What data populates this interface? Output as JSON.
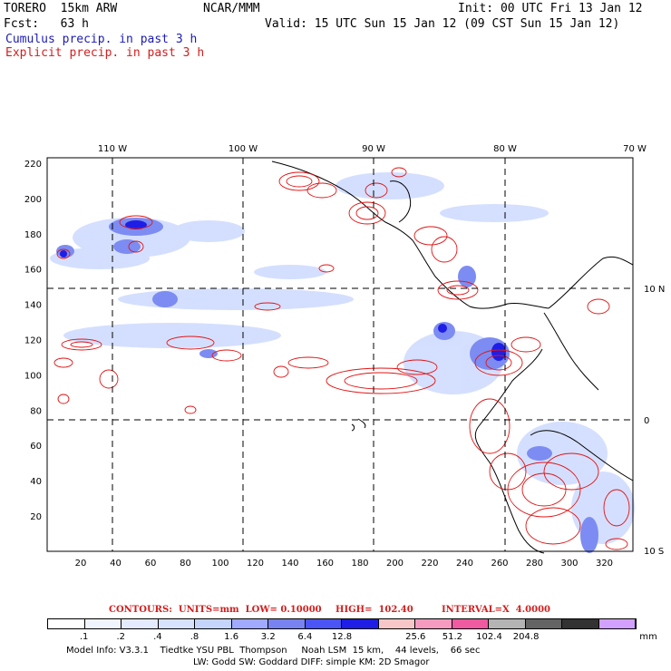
{
  "header": {
    "line1_left": "TORERO  15km ARW",
    "line1_mid": "NCAR/MMM",
    "line1_right": "Init: 00 UTC Fri 13 Jan 12",
    "line2_left": "Fcst:   63 h",
    "line2_right": "Valid: 15 UTC Sun 15 Jan 12 (09 CST Sun 15 Jan 12)",
    "cumulus_label": "Cumulus precip. in past 3 h",
    "explicit_label": "Explicit precip. in past 3 h"
  },
  "map": {
    "lon_labels": [
      "110 W",
      "100 W",
      "90 W",
      "80 W",
      "70 W"
    ],
    "lat_labels": [
      "10 N",
      "0",
      "10 S"
    ],
    "y_ticks": [
      "220",
      "200",
      "180",
      "160",
      "140",
      "120",
      "100",
      "80",
      "60",
      "40",
      "20"
    ],
    "x_ticks": [
      "20",
      "40",
      "60",
      "80",
      "100",
      "120",
      "140",
      "160",
      "180",
      "200",
      "220",
      "240",
      "260",
      "280",
      "300",
      "320"
    ],
    "colors": {
      "contour": "#e01414",
      "coast": "#000000",
      "precip_light": "#c8d7ff",
      "precip_mid": "#6478f0",
      "precip_heavy": "#1414e6"
    }
  },
  "contours_line": {
    "prefix": "CONTOURS:  UNITS=mm  LOW= 0.10000",
    "high": "HIGH=  102.40",
    "interval": "INTERVAL=X  4.0000"
  },
  "colorbar": {
    "colors": [
      "#ffffff",
      "#f0f4ff",
      "#e4eaff",
      "#d7e2ff",
      "#c5d4fa",
      "#a0aaff",
      "#7882f0",
      "#4b55f5",
      "#1e1ee6",
      "#f7c7c7",
      "#f59bc0",
      "#f05aa0",
      "#b4b4b4",
      "#646464",
      "#323232",
      "#d2a0ff"
    ],
    "labels": [
      ".1",
      ".2",
      ".4",
      ".8",
      "1.6",
      "3.2",
      "6.4",
      "12.8",
      "25.6",
      "51.2",
      "102.4",
      "204.8"
    ],
    "unit": "mm"
  },
  "footer": {
    "line1": "Model Info: V3.3.1    Tiedtke YSU PBL  Thompson     Noah LSM  15 km,    44 levels,    66 sec",
    "line2": "LW: Godd SW: Goddard DIFF: simple KM: 2D Smagor"
  }
}
